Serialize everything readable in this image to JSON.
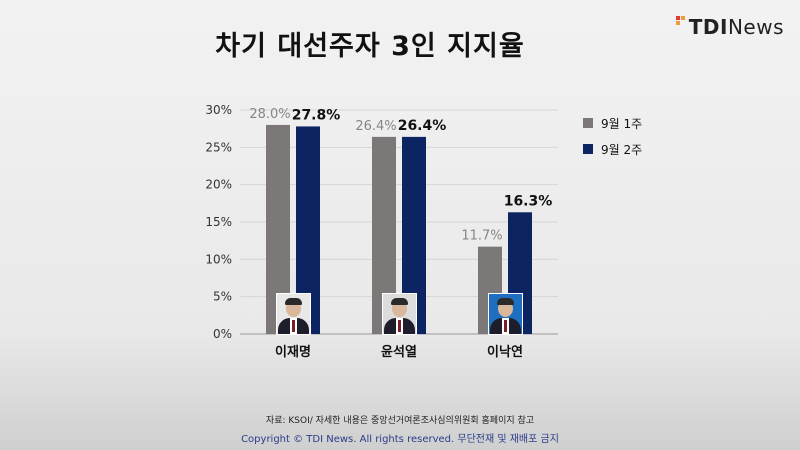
{
  "title": "차기 대선주자 3인 지지율",
  "logo": {
    "bold": "TDI",
    "light": "News"
  },
  "colors": {
    "series1": "#7d7878",
    "series2": "#0d2463",
    "grid": "#d6d6d6"
  },
  "chart_data": {
    "type": "bar",
    "title": "차기 대선주자 3인 지지율",
    "categories": [
      "이재명",
      "윤석열",
      "이낙연"
    ],
    "series": [
      {
        "name": "9월 1주",
        "values": [
          28.0,
          26.4,
          11.7
        ],
        "labels": [
          "28.0%",
          "26.4%",
          "11.7%"
        ],
        "color": "#7d7878"
      },
      {
        "name": "9월 2주",
        "values": [
          27.8,
          26.4,
          16.3
        ],
        "labels": [
          "27.8%",
          "26.4%",
          "16.3%"
        ],
        "color": "#0d2463"
      }
    ],
    "yticks": [
      "0%",
      "5%",
      "10%",
      "15%",
      "20%",
      "25%",
      "30%"
    ],
    "ylim": [
      0,
      30
    ],
    "grid": true,
    "legend": "right"
  },
  "photos": [
    {
      "name": "lee-jae-myung-photo",
      "bg": "#e8e8e8",
      "shirt": "#ffffff"
    },
    {
      "name": "yoon-suk-yeol-photo",
      "bg": "#dcdcdc",
      "shirt": "#ffffff"
    },
    {
      "name": "lee-nak-yon-photo",
      "bg": "#1e6fbf",
      "shirt": "#ffffff"
    }
  ],
  "footer": {
    "source": "자료: KSOI/ 자세한 내용은 중앙선거여론조사심의위원회 홈페이지 참고",
    "copyright": "Copyright © TDI News. All rights reserved. 무단전재 및 재배포 금지"
  }
}
